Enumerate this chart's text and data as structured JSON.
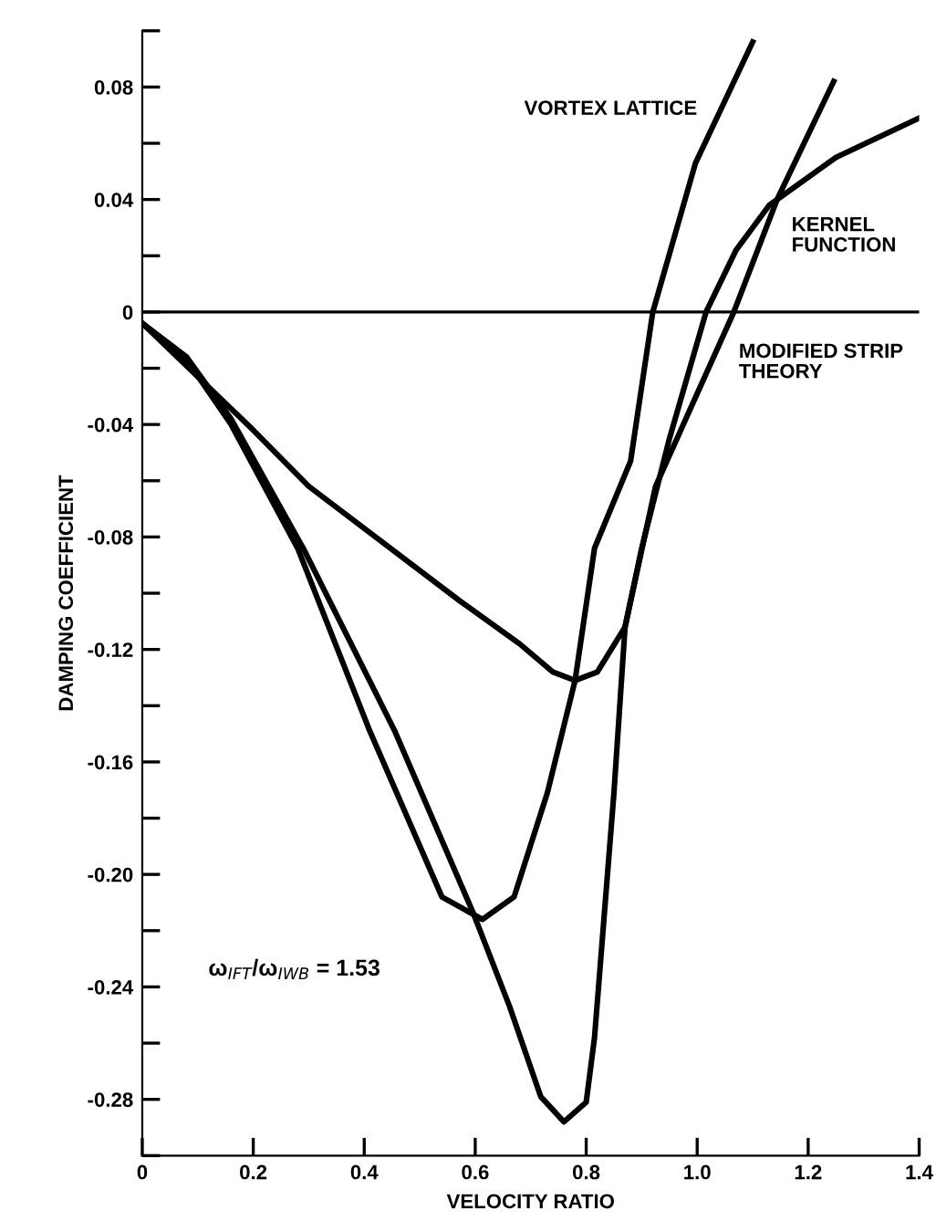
{
  "chart_data": {
    "type": "line",
    "xlabel": "VELOCITY RATIO",
    "ylabel": "DAMPING COEFFICIENT",
    "xlim": [
      0,
      1.4
    ],
    "ylim": [
      -0.3,
      0.1
    ],
    "xticks": [
      0,
      0.2,
      0.4,
      0.6,
      0.8,
      {
        "value": 1.0,
        "label": "1.0"
      },
      1.2,
      1.4
    ],
    "yticks": [
      {
        "value": -0.3,
        "label": null
      },
      {
        "value": -0.28,
        "label": "-0.28"
      },
      {
        "value": -0.26,
        "label": null
      },
      {
        "value": -0.24,
        "label": "-0.24"
      },
      {
        "value": -0.22,
        "label": null
      },
      {
        "value": -0.2,
        "label": "-0.20"
      },
      {
        "value": -0.18,
        "label": null
      },
      {
        "value": -0.16,
        "label": "-0.16"
      },
      {
        "value": -0.14,
        "label": null
      },
      {
        "value": -0.12,
        "label": "-0.12"
      },
      {
        "value": -0.1,
        "label": null
      },
      {
        "value": -0.08,
        "label": "-0.08"
      },
      {
        "value": -0.06,
        "label": null
      },
      {
        "value": -0.04,
        "label": "-0.04"
      },
      {
        "value": -0.02,
        "label": null
      },
      {
        "value": 0,
        "label": "0"
      },
      {
        "value": 0.02,
        "label": null
      },
      {
        "value": 0.04,
        "label": "0.04"
      },
      {
        "value": 0.06,
        "label": null
      },
      {
        "value": 0.08,
        "label": "0.08"
      },
      {
        "value": 0.1,
        "label": null
      }
    ],
    "grid": false,
    "legend": false,
    "marker": "none",
    "line_style": "solid",
    "ref_lines": [
      {
        "axis": "y",
        "value": 0,
        "color": "#000000"
      }
    ],
    "annotations": [
      "ω$_{IFT}$/ω$_{IWB}$ = 1.53"
    ],
    "series": [
      {
        "name": "MODIFIED STRIP THEORY",
        "color": "#000000",
        "x": [
          0,
          0.08,
          0.16,
          0.29,
          0.455,
          0.597,
          0.662,
          0.718,
          0.76,
          0.8,
          0.815,
          0.85,
          0.87,
          0.925,
          1.066,
          1.144,
          1.246
        ],
        "values": [
          -0.004,
          -0.016,
          -0.038,
          -0.084,
          -0.149,
          -0.214,
          -0.247,
          -0.279,
          -0.288,
          -0.281,
          -0.258,
          -0.171,
          -0.112,
          -0.062,
          0,
          0.04,
          0.082
        ]
      },
      {
        "name": "VORTEX LATTICE",
        "color": "#000000",
        "x": [
          0,
          0.08,
          0.16,
          0.28,
          0.41,
          0.54,
          0.613,
          0.67,
          0.73,
          0.78,
          0.815,
          0.88,
          0.92,
          0.997,
          1.1
        ],
        "values": [
          -0.004,
          -0.017,
          -0.04,
          -0.084,
          -0.149,
          -0.208,
          -0.216,
          -0.208,
          -0.171,
          -0.131,
          -0.084,
          -0.053,
          0,
          0.053,
          0.096
        ]
      },
      {
        "name": "KERNEL FUNCTION",
        "color": "#000000",
        "x": [
          0,
          0.2,
          0.3,
          0.574,
          0.68,
          0.74,
          0.78,
          0.82,
          0.87,
          0.9,
          0.95,
          1.016,
          1.07,
          1.13,
          1.25,
          1.4
        ],
        "values": [
          -0.004,
          -0.042,
          -0.062,
          -0.103,
          -0.118,
          -0.128,
          -0.131,
          -0.128,
          -0.112,
          -0.084,
          -0.045,
          0,
          0.022,
          0.038,
          0.055,
          0.069
        ]
      }
    ]
  }
}
